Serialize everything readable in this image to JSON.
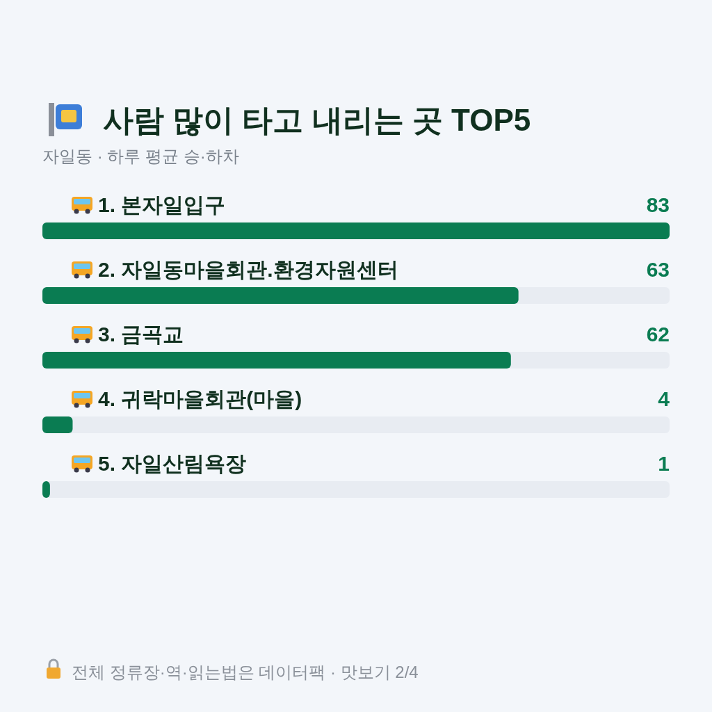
{
  "chart_data": {
    "type": "bar",
    "orientation": "horizontal",
    "title": "사람 많이 타고 내리는 곳 TOP5",
    "subtitle": "자일동 · 하루 평균 승·하차",
    "categories": [
      "1. 본자일입구",
      "2. 자일동마을회관.환경자원센터",
      "3. 금곡교",
      "4. 귀락마을회관(마을)",
      "5. 자일산림욕장"
    ],
    "values": [
      83,
      63,
      62,
      4,
      1
    ],
    "color": "#0a7c52",
    "data_labels": true,
    "annotations": [
      "전체 정류장·역·읽는법은 데이터팩 · 맛보기 2/4"
    ]
  }
}
